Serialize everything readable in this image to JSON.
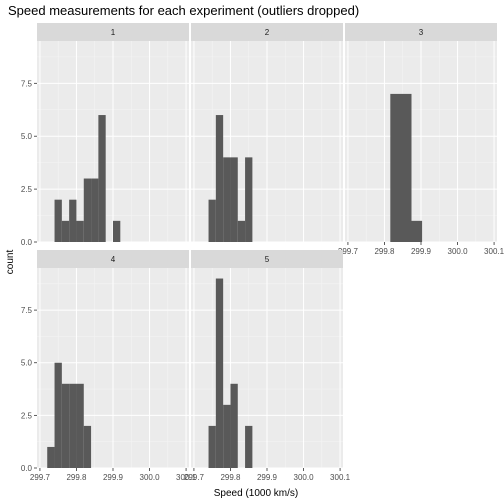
{
  "chart_data": {
    "type": "bar",
    "title": "Speed measurements for each experiment (outliers dropped)",
    "xlabel": "Speed (1000 km/s)",
    "ylabel": "count",
    "xlim": [
      299.7,
      300.1
    ],
    "ylim": [
      0,
      9.5
    ],
    "x_ticks": [
      299.7,
      299.8,
      299.9,
      300.0,
      300.1
    ],
    "x_tick_labels": [
      "299.7",
      "299.8",
      "299.9",
      "300.0",
      "300.1"
    ],
    "y_ticks": [
      0,
      2.5,
      5.0,
      7.5
    ],
    "y_tick_labels": [
      "0.0",
      "2.5",
      "5.0",
      "7.5"
    ],
    "grid": true,
    "facets": [
      {
        "label": "1",
        "bars": [
          {
            "x0": 299.74,
            "x1": 299.76,
            "count": 2
          },
          {
            "x0": 299.76,
            "x1": 299.78,
            "count": 1
          },
          {
            "x0": 299.78,
            "x1": 299.8,
            "count": 2
          },
          {
            "x0": 299.8,
            "x1": 299.82,
            "count": 1
          },
          {
            "x0": 299.82,
            "x1": 299.84,
            "count": 3
          },
          {
            "x0": 299.84,
            "x1": 299.86,
            "count": 3
          },
          {
            "x0": 299.86,
            "x1": 299.88,
            "count": 6
          },
          {
            "x0": 299.9,
            "x1": 299.92,
            "count": 1
          }
        ]
      },
      {
        "label": "2",
        "bars": [
          {
            "x0": 299.74,
            "x1": 299.76,
            "count": 2
          },
          {
            "x0": 299.76,
            "x1": 299.78,
            "count": 6
          },
          {
            "x0": 299.78,
            "x1": 299.8,
            "count": 4
          },
          {
            "x0": 299.8,
            "x1": 299.82,
            "count": 4
          },
          {
            "x0": 299.82,
            "x1": 299.84,
            "count": 1
          },
          {
            "x0": 299.84,
            "x1": 299.86,
            "count": 4
          }
        ]
      },
      {
        "label": "3",
        "bars": [
          {
            "x0": 299.816,
            "x1": 299.874,
            "count": 7
          },
          {
            "x0": 299.874,
            "x1": 299.903,
            "count": 1
          }
        ]
      },
      {
        "label": "4",
        "bars": [
          {
            "x0": 299.72,
            "x1": 299.74,
            "count": 1
          },
          {
            "x0": 299.74,
            "x1": 299.76,
            "count": 5
          },
          {
            "x0": 299.76,
            "x1": 299.78,
            "count": 4
          },
          {
            "x0": 299.78,
            "x1": 299.8,
            "count": 4
          },
          {
            "x0": 299.8,
            "x1": 299.82,
            "count": 4
          },
          {
            "x0": 299.82,
            "x1": 299.84,
            "count": 2
          }
        ]
      },
      {
        "label": "5",
        "bars": [
          {
            "x0": 299.74,
            "x1": 299.76,
            "count": 2
          },
          {
            "x0": 299.76,
            "x1": 299.78,
            "count": 9
          },
          {
            "x0": 299.78,
            "x1": 299.8,
            "count": 3
          },
          {
            "x0": 299.8,
            "x1": 299.82,
            "count": 4
          },
          {
            "x0": 299.84,
            "x1": 299.86,
            "count": 2
          }
        ]
      }
    ]
  }
}
